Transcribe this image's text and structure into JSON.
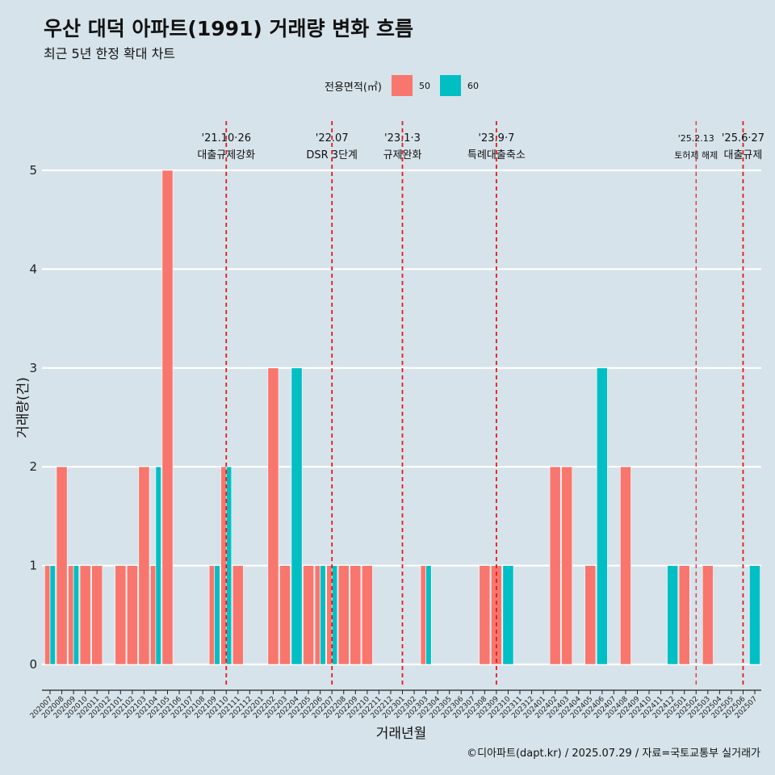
{
  "header": {
    "title": "우산 대덕 아파트(1991) 거래량 변화 흐름",
    "subtitle": "최근 5년 한정 확대 차트"
  },
  "legend": {
    "title": "전용면적(㎡)",
    "items": [
      {
        "label": "50",
        "color": "#f8766d"
      },
      {
        "label": "60",
        "color": "#00bfc4"
      }
    ]
  },
  "caption": "©디아파트(dapt.kr) / 2025.07.29 / 자료=국토교통부 실거래가",
  "chart_data": {
    "type": "bar",
    "title": "우산 대덕 아파트(1991) 거래량 변화 흐름",
    "subtitle": "최근 5년 한정 확대 차트",
    "xlabel": "거래년월",
    "ylabel": "거래량(건)",
    "ylim": [
      0,
      5
    ],
    "yticks": [
      0,
      1,
      2,
      3,
      4,
      5
    ],
    "grid": true,
    "legend_position": "top",
    "categories": [
      "202007",
      "202008",
      "202009",
      "202010",
      "202011",
      "202012",
      "202101",
      "202102",
      "202103",
      "202104",
      "202105",
      "202106",
      "202107",
      "202108",
      "202109",
      "202110",
      "202111",
      "202112",
      "202201",
      "202202",
      "202203",
      "202204",
      "202205",
      "202206",
      "202207",
      "202208",
      "202209",
      "202210",
      "202211",
      "202212",
      "202301",
      "202302",
      "202303",
      "202304",
      "202305",
      "202306",
      "202307",
      "202308",
      "202309",
      "202310",
      "202311",
      "202312",
      "202401",
      "202402",
      "202403",
      "202404",
      "202405",
      "202406",
      "202407",
      "202408",
      "202409",
      "202410",
      "202411",
      "202412",
      "202501",
      "202502",
      "202503",
      "202504",
      "202505",
      "202506",
      "202507"
    ],
    "series": [
      {
        "name": "50",
        "color": "#f8766d",
        "values": [
          1,
          2,
          1,
          1,
          1,
          0,
          1,
          1,
          2,
          1,
          5,
          0,
          0,
          0,
          1,
          2,
          1,
          0,
          0,
          3,
          1,
          0,
          1,
          1,
          1,
          1,
          1,
          1,
          0,
          0,
          0,
          0,
          1,
          0,
          0,
          0,
          0,
          1,
          1,
          0,
          0,
          0,
          0,
          2,
          2,
          0,
          1,
          0,
          0,
          2,
          0,
          0,
          0,
          0,
          1,
          0,
          1,
          0,
          0,
          0,
          0
        ]
      },
      {
        "name": "60",
        "color": "#00bfc4",
        "values": [
          1,
          0,
          1,
          0,
          0,
          0,
          0,
          0,
          0,
          2,
          0,
          0,
          0,
          0,
          1,
          2,
          0,
          0,
          0,
          0,
          0,
          3,
          0,
          1,
          1,
          0,
          0,
          0,
          0,
          0,
          0,
          0,
          1,
          0,
          0,
          0,
          0,
          0,
          0,
          1,
          0,
          0,
          0,
          0,
          0,
          0,
          0,
          3,
          0,
          0,
          0,
          0,
          0,
          1,
          0,
          0,
          0,
          0,
          0,
          0,
          1
        ]
      }
    ],
    "annotations": [
      {
        "date": "202110",
        "label": "'21.10·26",
        "note": "대출규제강화"
      },
      {
        "date": "202207",
        "label": "'22.07",
        "note": "DSR 3단계"
      },
      {
        "date": "202301",
        "label": "'23.1·3",
        "note": "규제완화"
      },
      {
        "date": "202309",
        "label": "'23.9·7",
        "note": "특례대출축소"
      },
      {
        "date": "202502",
        "label": "'25.2.13",
        "note": "토허제 해제"
      },
      {
        "date": "202506",
        "label": "'25.6·27",
        "note": "대출규제"
      }
    ]
  }
}
